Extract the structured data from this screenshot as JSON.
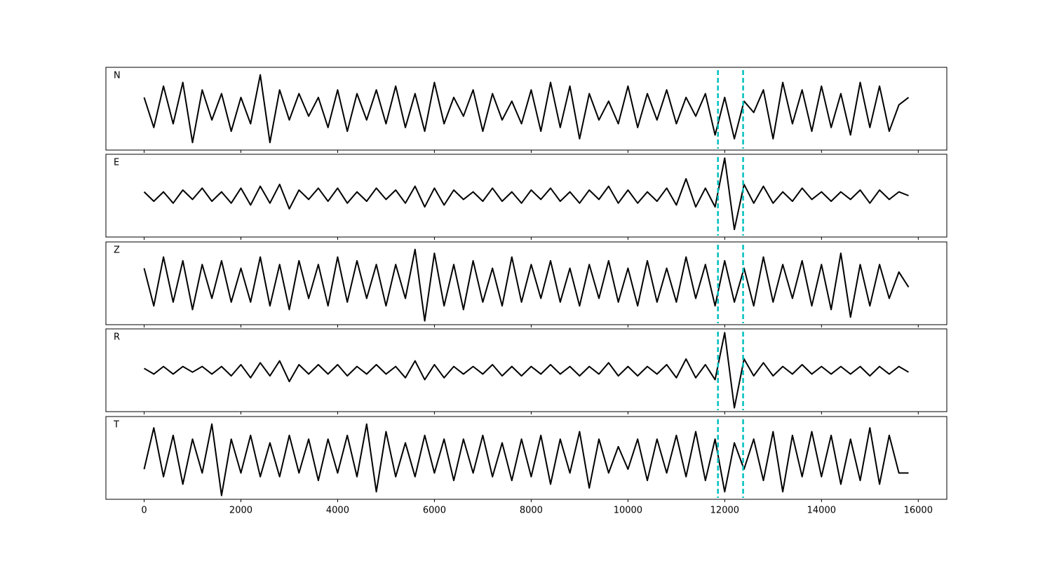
{
  "chart_data": [
    {
      "type": "line",
      "label": "N",
      "color": "#000000",
      "xlim": [
        -790,
        16590
      ],
      "ylim": [
        -1.1,
        1.1
      ],
      "vlines": [
        11860,
        12380
      ],
      "vline_color": "#00bfbf",
      "x": [
        0,
        200,
        400,
        600,
        800,
        1000,
        1200,
        1400,
        1600,
        1800,
        2000,
        2200,
        2400,
        2600,
        2800,
        3000,
        3200,
        3400,
        3600,
        3800,
        4000,
        4200,
        4400,
        4600,
        4800,
        5000,
        5200,
        5400,
        5600,
        5800,
        6000,
        6200,
        6400,
        6600,
        6800,
        7000,
        7200,
        7400,
        7600,
        7800,
        8000,
        8200,
        8400,
        8600,
        8800,
        9000,
        9200,
        9400,
        9600,
        9800,
        10000,
        10200,
        10400,
        10600,
        10800,
        11000,
        11200,
        11400,
        11600,
        11800,
        12000,
        12200,
        12400,
        12600,
        12800,
        13000,
        13200,
        13400,
        13600,
        13800,
        14000,
        14200,
        14400,
        14600,
        14800,
        15000,
        15200,
        15400,
        15600,
        15800
      ],
      "values": [
        0.3,
        -0.5,
        0.6,
        -0.4,
        0.7,
        -0.9,
        0.5,
        -0.3,
        0.4,
        -0.6,
        0.3,
        -0.4,
        0.9,
        -0.9,
        0.5,
        -0.3,
        0.4,
        -0.2,
        0.3,
        -0.5,
        0.5,
        -0.6,
        0.4,
        -0.3,
        0.5,
        -0.4,
        0.6,
        -0.5,
        0.4,
        -0.6,
        0.7,
        -0.4,
        0.3,
        -0.2,
        0.5,
        -0.6,
        0.4,
        -0.3,
        0.2,
        -0.4,
        0.5,
        -0.6,
        0.7,
        -0.5,
        0.6,
        -0.8,
        0.4,
        -0.3,
        0.2,
        -0.4,
        0.6,
        -0.5,
        0.4,
        -0.3,
        0.5,
        -0.4,
        0.3,
        -0.2,
        0.4,
        -0.7,
        0.3,
        -0.8,
        0.2,
        -0.1,
        0.5,
        -0.8,
        0.7,
        -0.4,
        0.5,
        -0.6,
        0.6,
        -0.5,
        0.4,
        -0.7,
        0.7,
        -0.5,
        0.6,
        -0.6,
        0.1,
        0.3
      ]
    },
    {
      "type": "line",
      "label": "E",
      "color": "#000000",
      "xlim": [
        -790,
        16590
      ],
      "ylim": [
        -1.1,
        1.1
      ],
      "vlines": [
        11860,
        12380
      ],
      "vline_color": "#00bfbf",
      "x": [
        0,
        200,
        400,
        600,
        800,
        1000,
        1200,
        1400,
        1600,
        1800,
        2000,
        2200,
        2400,
        2600,
        2800,
        3000,
        3200,
        3400,
        3600,
        3800,
        4000,
        4200,
        4400,
        4600,
        4800,
        5000,
        5200,
        5400,
        5600,
        5800,
        6000,
        6200,
        6400,
        6600,
        6800,
        7000,
        7200,
        7400,
        7600,
        7800,
        8000,
        8200,
        8400,
        8600,
        8800,
        9000,
        9200,
        9400,
        9600,
        9800,
        10000,
        10200,
        10400,
        10600,
        10800,
        11000,
        11200,
        11400,
        11600,
        11800,
        12000,
        12200,
        12400,
        12600,
        12800,
        13000,
        13200,
        13400,
        13600,
        13800,
        14000,
        14200,
        14400,
        14600,
        14800,
        15000,
        15200,
        15400,
        15600,
        15800
      ],
      "values": [
        0.1,
        -0.15,
        0.1,
        -0.2,
        0.15,
        -0.1,
        0.2,
        -0.15,
        0.1,
        -0.2,
        0.2,
        -0.25,
        0.25,
        -0.2,
        0.3,
        -0.35,
        0.15,
        -0.1,
        0.2,
        -0.15,
        0.2,
        -0.2,
        0.1,
        -0.15,
        0.2,
        -0.1,
        0.15,
        -0.2,
        0.25,
        -0.3,
        0.2,
        -0.25,
        0.15,
        -0.1,
        0.1,
        -0.15,
        0.2,
        -0.15,
        0.1,
        -0.2,
        0.15,
        -0.1,
        0.2,
        -0.15,
        0.1,
        -0.2,
        0.15,
        -0.1,
        0.25,
        -0.2,
        0.15,
        -0.2,
        0.1,
        -0.15,
        0.2,
        -0.25,
        0.45,
        -0.3,
        0.2,
        -0.3,
        1.0,
        -0.9,
        0.3,
        -0.2,
        0.25,
        -0.2,
        0.1,
        -0.15,
        0.2,
        -0.1,
        0.1,
        -0.15,
        0.1,
        -0.1,
        0.15,
        -0.2,
        0.15,
        -0.1,
        0.1,
        0.0
      ]
    },
    {
      "type": "line",
      "label": "Z",
      "color": "#000000",
      "xlim": [
        -790,
        16590
      ],
      "ylim": [
        -1.1,
        1.1
      ],
      "vlines": [
        11860,
        12380
      ],
      "vline_color": "#00bfbf",
      "x": [
        0,
        200,
        400,
        600,
        800,
        1000,
        1200,
        1400,
        1600,
        1800,
        2000,
        2200,
        2400,
        2600,
        2800,
        3000,
        3200,
        3400,
        3600,
        3800,
        4000,
        4200,
        4400,
        4600,
        4800,
        5000,
        5200,
        5400,
        5600,
        5800,
        6000,
        6200,
        6400,
        6600,
        6800,
        7000,
        7200,
        7400,
        7600,
        7800,
        8000,
        8200,
        8400,
        8600,
        8800,
        9000,
        9200,
        9400,
        9600,
        9800,
        10000,
        10200,
        10400,
        10600,
        10800,
        11000,
        11200,
        11400,
        11600,
        11800,
        12000,
        12200,
        12400,
        12600,
        12800,
        13000,
        13200,
        13400,
        13600,
        13800,
        14000,
        14200,
        14400,
        14600,
        14800,
        15000,
        15200,
        15400,
        15600,
        15800
      ],
      "values": [
        0.4,
        -0.6,
        0.7,
        -0.5,
        0.6,
        -0.7,
        0.5,
        -0.4,
        0.6,
        -0.5,
        0.4,
        -0.5,
        0.7,
        -0.6,
        0.5,
        -0.7,
        0.6,
        -0.4,
        0.5,
        -0.6,
        0.7,
        -0.5,
        0.6,
        -0.4,
        0.5,
        -0.6,
        0.5,
        -0.4,
        0.9,
        -1.0,
        0.8,
        -0.6,
        0.5,
        -0.7,
        0.6,
        -0.5,
        0.4,
        -0.6,
        0.7,
        -0.5,
        0.5,
        -0.4,
        0.6,
        -0.5,
        0.4,
        -0.6,
        0.5,
        -0.4,
        0.6,
        -0.5,
        0.4,
        -0.6,
        0.6,
        -0.5,
        0.4,
        -0.5,
        0.7,
        -0.4,
        0.5,
        -0.6,
        0.6,
        -0.5,
        0.4,
        -0.6,
        0.7,
        -0.5,
        0.5,
        -0.4,
        0.6,
        -0.6,
        0.5,
        -0.7,
        0.8,
        -0.9,
        0.5,
        -0.6,
        0.5,
        -0.4,
        0.3,
        -0.1
      ]
    },
    {
      "type": "line",
      "label": "R",
      "color": "#000000",
      "xlim": [
        -790,
        16590
      ],
      "ylim": [
        -1.1,
        1.1
      ],
      "vlines": [
        11860,
        12380
      ],
      "vline_color": "#00bfbf",
      "x": [
        0,
        200,
        400,
        600,
        800,
        1000,
        1200,
        1400,
        1600,
        1800,
        2000,
        2200,
        2400,
        2600,
        2800,
        3000,
        3200,
        3400,
        3600,
        3800,
        4000,
        4200,
        4400,
        4600,
        4800,
        5000,
        5200,
        5400,
        5600,
        5800,
        6000,
        6200,
        6400,
        6600,
        6800,
        7000,
        7200,
        7400,
        7600,
        7800,
        8000,
        8200,
        8400,
        8600,
        8800,
        9000,
        9200,
        9400,
        9600,
        9800,
        10000,
        10200,
        10400,
        10600,
        10800,
        11000,
        11200,
        11400,
        11600,
        11800,
        12000,
        12200,
        12400,
        12600,
        12800,
        13000,
        13200,
        13400,
        13600,
        13800,
        14000,
        14200,
        14400,
        14600,
        14800,
        15000,
        15200,
        15400,
        15600,
        15800
      ],
      "values": [
        0.05,
        -0.1,
        0.1,
        -0.1,
        0.1,
        -0.05,
        0.1,
        -0.1,
        0.1,
        -0.15,
        0.15,
        -0.2,
        0.2,
        -0.15,
        0.25,
        -0.3,
        0.15,
        -0.1,
        0.15,
        -0.1,
        0.15,
        -0.15,
        0.1,
        -0.1,
        0.15,
        -0.1,
        0.1,
        -0.2,
        0.25,
        -0.25,
        0.15,
        -0.2,
        0.1,
        -0.1,
        0.1,
        -0.1,
        0.15,
        -0.15,
        0.1,
        -0.15,
        0.1,
        -0.1,
        0.15,
        -0.1,
        0.1,
        -0.15,
        0.1,
        -0.1,
        0.2,
        -0.15,
        0.1,
        -0.15,
        0.1,
        -0.1,
        0.15,
        -0.2,
        0.3,
        -0.2,
        0.15,
        -0.25,
        1.0,
        -1.0,
        0.3,
        -0.15,
        0.2,
        -0.15,
        0.1,
        -0.1,
        0.15,
        -0.1,
        0.1,
        -0.1,
        0.1,
        -0.1,
        0.1,
        -0.15,
        0.1,
        -0.1,
        0.1,
        -0.05
      ]
    },
    {
      "type": "line",
      "label": "T",
      "color": "#000000",
      "xlim": [
        -790,
        16590
      ],
      "ylim": [
        -1.1,
        1.1
      ],
      "vlines": [
        11860,
        12380
      ],
      "vline_color": "#00bfbf",
      "x": [
        0,
        200,
        400,
        600,
        800,
        1000,
        1200,
        1400,
        1600,
        1800,
        2000,
        2200,
        2400,
        2600,
        2800,
        3000,
        3200,
        3400,
        3600,
        3800,
        4000,
        4200,
        4400,
        4600,
        4800,
        5000,
        5200,
        5400,
        5600,
        5800,
        6000,
        6200,
        6400,
        6600,
        6800,
        7000,
        7200,
        7400,
        7600,
        7800,
        8000,
        8200,
        8400,
        8600,
        8800,
        9000,
        9200,
        9400,
        9600,
        9800,
        10000,
        10200,
        10400,
        10600,
        10800,
        11000,
        11200,
        11400,
        11600,
        11800,
        12000,
        12200,
        12400,
        12600,
        12800,
        13000,
        13200,
        13400,
        13600,
        13800,
        14000,
        14200,
        14400,
        14600,
        14800,
        15000,
        15200,
        15400,
        15600,
        15800
      ],
      "values": [
        -0.3,
        0.8,
        -0.5,
        0.6,
        -0.7,
        0.5,
        -0.4,
        0.9,
        -1.0,
        0.5,
        -0.4,
        0.6,
        -0.5,
        0.4,
        -0.5,
        0.6,
        -0.4,
        0.5,
        -0.6,
        0.5,
        -0.4,
        0.6,
        -0.5,
        0.9,
        -0.9,
        0.7,
        -0.5,
        0.4,
        -0.5,
        0.6,
        -0.4,
        0.5,
        -0.6,
        0.5,
        -0.4,
        0.6,
        -0.5,
        0.4,
        -0.6,
        0.5,
        -0.5,
        0.6,
        -0.7,
        0.5,
        -0.4,
        0.7,
        -0.8,
        0.5,
        -0.4,
        0.3,
        -0.3,
        0.5,
        -0.6,
        0.5,
        -0.4,
        0.6,
        -0.5,
        0.7,
        -0.6,
        0.5,
        -0.9,
        0.4,
        -0.3,
        0.5,
        -0.6,
        0.7,
        -0.9,
        0.6,
        -0.5,
        0.7,
        -0.5,
        0.6,
        -0.7,
        0.5,
        -0.6,
        0.8,
        -0.7,
        0.6,
        -0.4,
        -0.4
      ],
      "xticks": [
        0,
        2000,
        4000,
        6000,
        8000,
        10000,
        12000,
        14000,
        16000
      ]
    }
  ]
}
